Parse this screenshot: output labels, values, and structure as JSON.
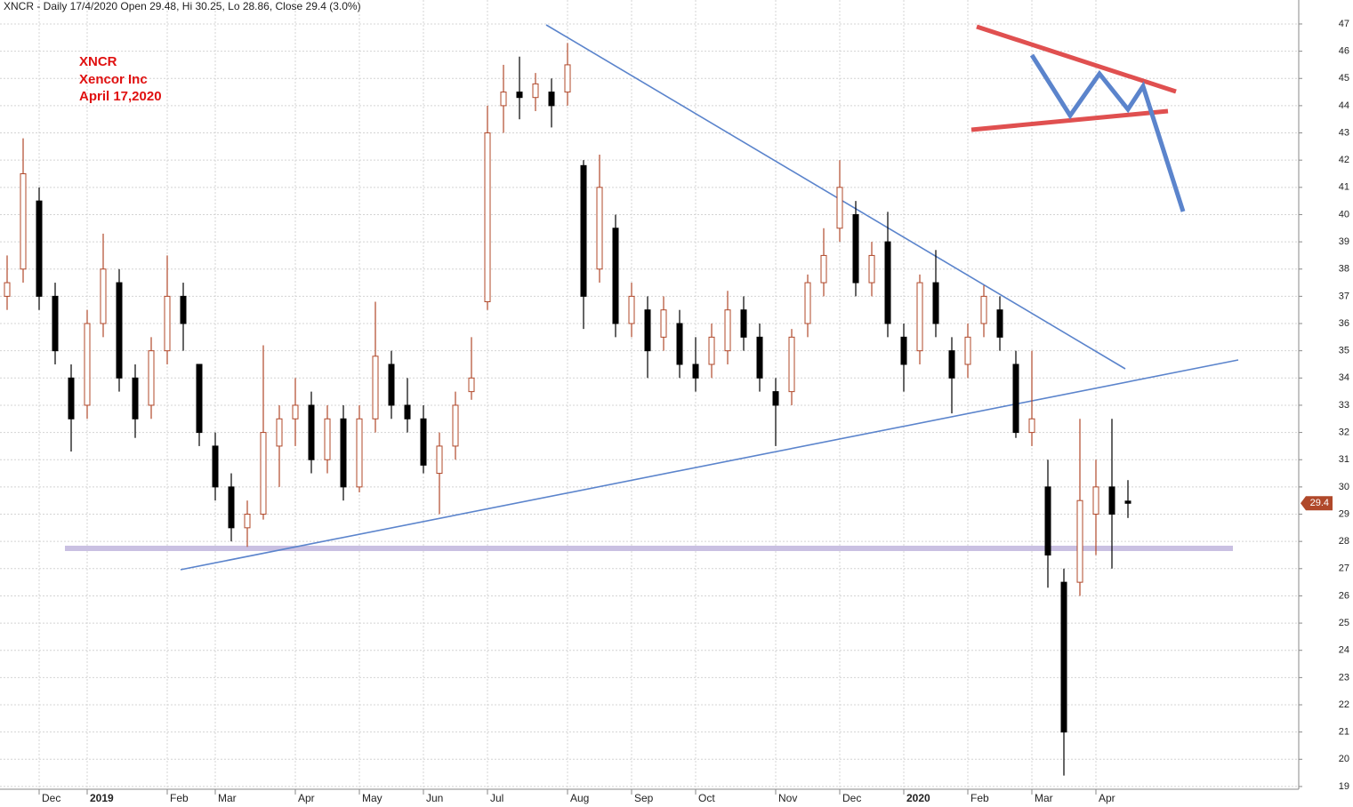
{
  "chart_data": {
    "type": "candlestick",
    "title": "XNCR - Daily 17/4/2020 Open 29.48, Hi 30.25, Lo 28.86, Close 29.4 (3.0%)",
    "annotations": [
      "XNCR",
      "Xencor Inc",
      "April 17,2020"
    ],
    "categories": [
      null,
      null,
      "Dec",
      null,
      null,
      "2019",
      null,
      null,
      null,
      null,
      "Feb",
      null,
      null,
      "Mar",
      null,
      null,
      null,
      null,
      "Apr",
      null,
      null,
      null,
      "May",
      null,
      null,
      null,
      "Jun",
      null,
      null,
      null,
      "Jul",
      null,
      null,
      null,
      null,
      "Aug",
      null,
      null,
      null,
      "Sep",
      null,
      null,
      null,
      "Oct",
      null,
      null,
      null,
      null,
      "Nov",
      null,
      null,
      null,
      "Dec",
      null,
      null,
      null,
      "2020",
      null,
      null,
      null,
      "Feb",
      null,
      null,
      null,
      "Mar",
      null,
      null,
      null,
      "Apr",
      null,
      null
    ],
    "open": [
      37,
      38,
      40.5,
      37,
      34,
      33,
      36,
      37.5,
      34,
      33,
      35,
      37,
      34.5,
      31.5,
      30,
      28.5,
      29,
      31.5,
      32.5,
      33,
      31,
      32.5,
      30,
      32.5,
      34.5,
      33,
      32.5,
      30.5,
      31.5,
      33.5,
      36.8,
      44,
      44.5,
      44.3,
      44.5,
      44.5,
      41.8,
      38,
      39.5,
      36,
      36.5,
      35.5,
      36,
      34.5,
      34.5,
      35,
      36.5,
      35.5,
      33.5,
      33.5,
      36,
      37.5,
      39.5,
      40,
      37.5,
      39,
      35.5,
      35,
      37.5,
      35,
      34.5,
      36,
      36.5,
      34.5,
      32,
      30,
      26.5,
      26.5,
      29,
      30,
      29.48
    ],
    "high": [
      38.5,
      42.8,
      41,
      37.5,
      34.5,
      36.5,
      39.3,
      38,
      34.5,
      35.5,
      38.5,
      37.5,
      34.5,
      32,
      30.5,
      29.5,
      35.2,
      33,
      34,
      33.5,
      33,
      33,
      33,
      36.8,
      35,
      34,
      33,
      32,
      33.5,
      35.5,
      44,
      45.5,
      45.8,
      45.2,
      45,
      46.3,
      42,
      42.2,
      40,
      37.5,
      37,
      37,
      36.5,
      35.5,
      36,
      37.2,
      37,
      36,
      34,
      35.8,
      37.8,
      39.5,
      42,
      40.5,
      39,
      40.1,
      36,
      37.8,
      38.7,
      35.5,
      36,
      37.4,
      37,
      35,
      35,
      31,
      27,
      32.5,
      31,
      32.5,
      30.25
    ],
    "low": [
      36.5,
      37.5,
      36.5,
      34.5,
      31.3,
      32.5,
      35.5,
      33.5,
      31.8,
      32.5,
      34.5,
      35,
      31.5,
      29.5,
      28,
      27.8,
      28.8,
      30,
      31.5,
      30.5,
      30.5,
      29.5,
      29.8,
      32,
      32.5,
      32,
      30.5,
      29,
      31,
      33.2,
      36.5,
      43,
      43.5,
      43.8,
      43.2,
      44,
      35.8,
      37.5,
      35.5,
      35.5,
      34,
      35,
      34,
      33.5,
      34,
      34.5,
      35,
      33.5,
      31.5,
      33,
      35.5,
      37,
      39,
      37,
      37,
      35.5,
      33.5,
      34.5,
      35.5,
      32.7,
      34,
      35.5,
      35,
      31.8,
      31.5,
      26.3,
      19.4,
      26,
      27.5,
      27,
      28.86
    ],
    "close": [
      37.5,
      41.5,
      37,
      35,
      32.5,
      36,
      38,
      34,
      32.5,
      35,
      37,
      36,
      32,
      30,
      28.5,
      29,
      32,
      32.5,
      33,
      31,
      32.5,
      30,
      32.5,
      34.8,
      33,
      32.5,
      30.8,
      31.5,
      33,
      34,
      43,
      44.5,
      44.3,
      44.8,
      44,
      45.5,
      37,
      41,
      36,
      37,
      35,
      36.5,
      34.5,
      34,
      35.5,
      36.5,
      35.5,
      34,
      33,
      35.5,
      37.5,
      38.5,
      41,
      37.5,
      38.5,
      36,
      34.5,
      37.5,
      36,
      34,
      35.5,
      37,
      35.5,
      32,
      32.5,
      27.5,
      21,
      29.5,
      30,
      29,
      29.4
    ],
    "up_color": "#b0482a",
    "down_color": "#000000",
    "last_price": 29.4,
    "last_price_color": "#b0482a",
    "ylim": [
      18.9,
      47.88
    ],
    "yticks": [
      19,
      20,
      21,
      22,
      23,
      24,
      25,
      26,
      27,
      28,
      29,
      30,
      31,
      32,
      33,
      34,
      35,
      36,
      37,
      38,
      39,
      40,
      41,
      42,
      43,
      44,
      45,
      46,
      47
    ],
    "grid": true
  }
}
